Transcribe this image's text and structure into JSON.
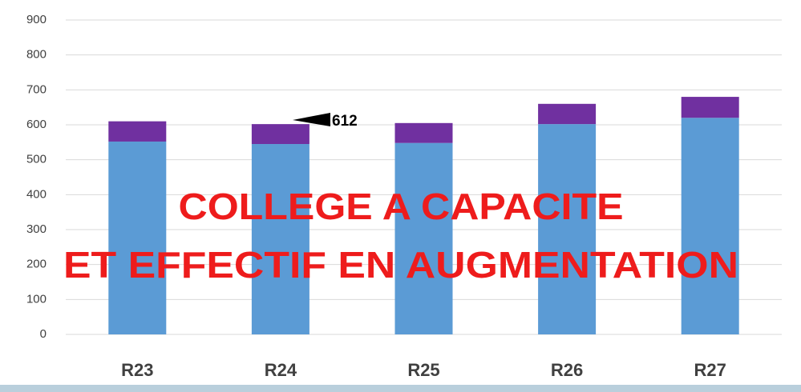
{
  "chart_data": {
    "type": "stacked_bar",
    "categories": [
      "R23",
      "R24",
      "R25",
      "R26",
      "R27"
    ],
    "series": [
      {
        "color": "#5b9bd5",
        "values": [
          552,
          545,
          548,
          602,
          620
        ]
      },
      {
        "color": "#7030a0",
        "values": [
          58,
          57,
          57,
          58,
          60
        ]
      }
    ],
    "ylim": [
      0,
      900
    ],
    "yticks": [
      0,
      100,
      200,
      300,
      400,
      500,
      600,
      700,
      800,
      900
    ],
    "grid": true,
    "annotation": "612",
    "overlay_text": [
      "COLLEGE A CAPACITE",
      "ET EFFECTIF EN AUGMENTATION"
    ]
  }
}
